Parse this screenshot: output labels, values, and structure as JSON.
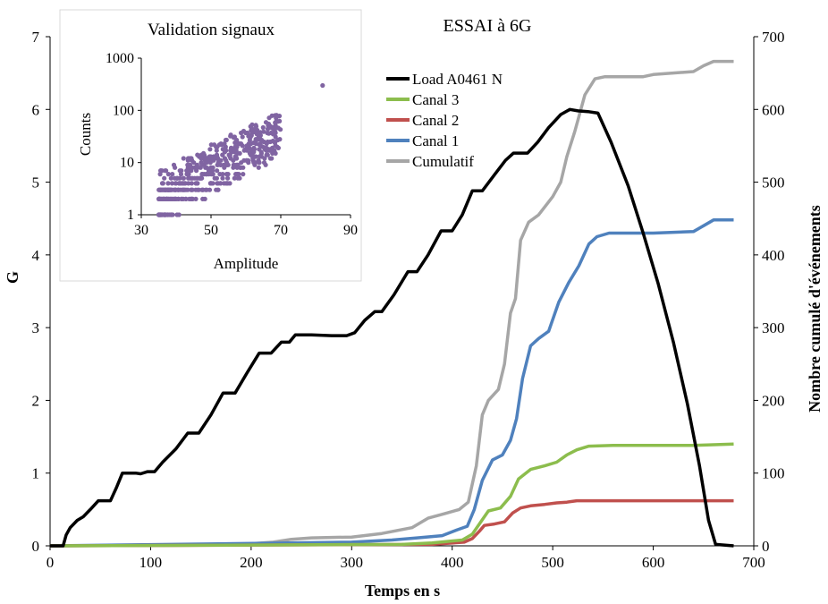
{
  "chart_data": [
    {
      "type": "line",
      "title": "ESSAI à 6G",
      "xlabel": "Temps en s",
      "ylabel": "G",
      "y2label": "Nombre cumulé d'événements",
      "xlim": [
        0,
        700
      ],
      "ylim": [
        0,
        7
      ],
      "y2lim": [
        0,
        700
      ],
      "xticks": [
        "0",
        "100",
        "200",
        "300",
        "400",
        "500",
        "600",
        "700"
      ],
      "yticks": [
        "0",
        "1",
        "2",
        "3",
        "4",
        "5",
        "6",
        "7"
      ],
      "y2ticks": [
        "0",
        "100",
        "200",
        "300",
        "400",
        "500",
        "600",
        "700"
      ],
      "grid": false,
      "legend_position": "top-center",
      "series": [
        {
          "name": "Load A0461  N",
          "axis": "left",
          "color": "#000000",
          "points": [
            [
              0,
              0
            ],
            [
              13,
              0
            ],
            [
              16,
              0.15
            ],
            [
              20,
              0.25
            ],
            [
              27,
              0.35
            ],
            [
              33,
              0.4
            ],
            [
              40,
              0.5
            ],
            [
              48,
              0.62
            ],
            [
              60,
              0.62
            ],
            [
              66,
              0.8
            ],
            [
              72,
              1.0
            ],
            [
              85,
              1.0
            ],
            [
              90,
              0.99
            ],
            [
              97,
              1.02
            ],
            [
              104,
              1.02
            ],
            [
              112,
              1.15
            ],
            [
              125,
              1.33
            ],
            [
              137,
              1.55
            ],
            [
              148,
              1.55
            ],
            [
              160,
              1.8
            ],
            [
              172,
              2.1
            ],
            [
              184,
              2.1
            ],
            [
              196,
              2.38
            ],
            [
              208,
              2.65
            ],
            [
              220,
              2.65
            ],
            [
              230,
              2.8
            ],
            [
              238,
              2.8
            ],
            [
              244,
              2.9
            ],
            [
              260,
              2.9
            ],
            [
              280,
              2.89
            ],
            [
              295,
              2.89
            ],
            [
              303,
              2.93
            ],
            [
              313,
              3.1
            ],
            [
              323,
              3.22
            ],
            [
              330,
              3.22
            ],
            [
              342,
              3.45
            ],
            [
              356,
              3.77
            ],
            [
              365,
              3.77
            ],
            [
              376,
              4.0
            ],
            [
              389,
              4.33
            ],
            [
              400,
              4.33
            ],
            [
              410,
              4.55
            ],
            [
              420,
              4.88
            ],
            [
              430,
              4.88
            ],
            [
              442,
              5.1
            ],
            [
              453,
              5.3
            ],
            [
              461,
              5.4
            ],
            [
              475,
              5.4
            ],
            [
              485,
              5.55
            ],
            [
              496,
              5.75
            ],
            [
              508,
              5.93
            ],
            [
              517,
              6.0
            ],
            [
              525,
              5.98
            ],
            [
              535,
              5.97
            ],
            [
              545,
              5.95
            ],
            [
              558,
              5.55
            ],
            [
              575,
              4.95
            ],
            [
              590,
              4.3
            ],
            [
              605,
              3.6
            ],
            [
              620,
              2.8
            ],
            [
              634,
              1.95
            ],
            [
              646,
              1.1
            ],
            [
              655,
              0.35
            ],
            [
              662,
              0.02
            ],
            [
              680,
              0
            ]
          ]
        },
        {
          "name": "Canal 3",
          "axis": "right",
          "color": "#8cbd4d",
          "points": [
            [
              0,
              0
            ],
            [
              350,
              2
            ],
            [
              380,
              4
            ],
            [
              395,
              6
            ],
            [
              410,
              8
            ],
            [
              420,
              16
            ],
            [
              428,
              32
            ],
            [
              436,
              48
            ],
            [
              448,
              52
            ],
            [
              458,
              68
            ],
            [
              466,
              92
            ],
            [
              478,
              105
            ],
            [
              492,
              110
            ],
            [
              504,
              115
            ],
            [
              514,
              125
            ],
            [
              524,
              132
            ],
            [
              536,
              137
            ],
            [
              560,
              138
            ],
            [
              640,
              138
            ],
            [
              660,
              139
            ],
            [
              680,
              140
            ]
          ]
        },
        {
          "name": "Canal 2",
          "axis": "right",
          "color": "#c0504d",
          "points": [
            [
              0,
              0
            ],
            [
              380,
              2
            ],
            [
              412,
              5
            ],
            [
              420,
              10
            ],
            [
              427,
              20
            ],
            [
              432,
              28
            ],
            [
              442,
              30
            ],
            [
              452,
              33
            ],
            [
              460,
              45
            ],
            [
              468,
              52
            ],
            [
              478,
              55
            ],
            [
              492,
              57
            ],
            [
              504,
              59
            ],
            [
              514,
              60
            ],
            [
              524,
              62
            ],
            [
              560,
              62
            ],
            [
              680,
              62
            ]
          ]
        },
        {
          "name": "Canal 1",
          "axis": "right",
          "color": "#4f81bd",
          "points": [
            [
              0,
              0
            ],
            [
              300,
              5
            ],
            [
              340,
              8
            ],
            [
              365,
              11
            ],
            [
              390,
              14
            ],
            [
              405,
              22
            ],
            [
              415,
              27
            ],
            [
              422,
              50
            ],
            [
              430,
              90
            ],
            [
              440,
              118
            ],
            [
              450,
              125
            ],
            [
              458,
              145
            ],
            [
              464,
              175
            ],
            [
              470,
              230
            ],
            [
              478,
              275
            ],
            [
              486,
              285
            ],
            [
              496,
              295
            ],
            [
              506,
              335
            ],
            [
              516,
              362
            ],
            [
              526,
              385
            ],
            [
              536,
              415
            ],
            [
              544,
              425
            ],
            [
              556,
              430
            ],
            [
              600,
              430
            ],
            [
              640,
              432
            ],
            [
              650,
              440
            ],
            [
              660,
              448
            ],
            [
              680,
              448
            ]
          ]
        },
        {
          "name": "Cumulatif",
          "axis": "right",
          "color": "#a6a6a6",
          "points": [
            [
              0,
              0
            ],
            [
              150,
              1
            ],
            [
              200,
              3
            ],
            [
              222,
              5
            ],
            [
              240,
              9
            ],
            [
              260,
              11
            ],
            [
              300,
              12
            ],
            [
              330,
              17
            ],
            [
              360,
              25
            ],
            [
              376,
              38
            ],
            [
              392,
              44
            ],
            [
              407,
              50
            ],
            [
              416,
              60
            ],
            [
              424,
              110
            ],
            [
              430,
              180
            ],
            [
              436,
              200
            ],
            [
              446,
              215
            ],
            [
              452,
              250
            ],
            [
              458,
              320
            ],
            [
              463,
              340
            ],
            [
              468,
              420
            ],
            [
              476,
              445
            ],
            [
              486,
              455
            ],
            [
              500,
              480
            ],
            [
              508,
              500
            ],
            [
              514,
              535
            ],
            [
              522,
              570
            ],
            [
              532,
              620
            ],
            [
              542,
              642
            ],
            [
              552,
              645
            ],
            [
              590,
              645
            ],
            [
              600,
              648
            ],
            [
              640,
              652
            ],
            [
              650,
              660
            ],
            [
              660,
              666
            ],
            [
              680,
              666
            ]
          ]
        }
      ]
    },
    {
      "type": "scatter",
      "title": "Validation signaux",
      "xlabel": "Amplitude",
      "ylabel": "Counts",
      "xlim": [
        30,
        90
      ],
      "ylim": [
        1,
        1000
      ],
      "yscale": "log",
      "xticks": [
        "30",
        "50",
        "70",
        "90"
      ],
      "yticks": [
        "1",
        "10",
        "100",
        "1000"
      ],
      "color": "#8064a2",
      "outlier": [
        82,
        300
      ],
      "points_note": "dense cloud from amplitude 35 to 70, counts rising from about 1 to about 70"
    }
  ]
}
